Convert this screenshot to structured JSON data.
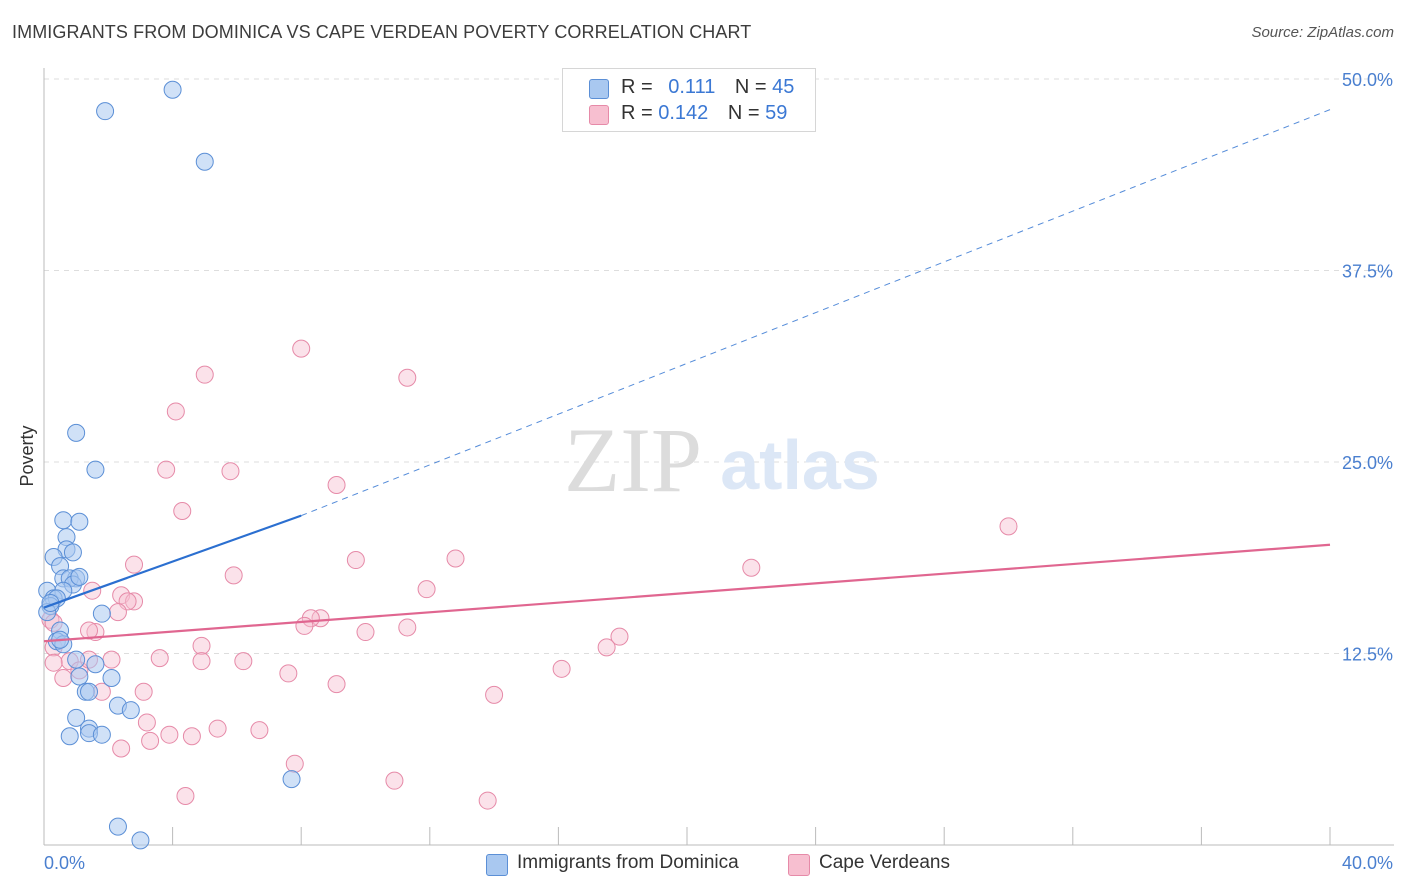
{
  "header": {
    "title": "IMMIGRANTS FROM DOMINICA VS CAPE VERDEAN POVERTY CORRELATION CHART",
    "source": "Source: ZipAtlas.com"
  },
  "watermark": {
    "zip": "ZIP",
    "atlas": "atlas"
  },
  "legend_top": [
    {
      "r_label": "R =",
      "r_value": "0.111",
      "n_label": "N =",
      "n_value": "45"
    },
    {
      "r_label": "R =",
      "r_value": "0.142",
      "n_label": "N =",
      "n_value": "59"
    }
  ],
  "legend_bottom": [
    {
      "label": "Immigrants from Dominica"
    },
    {
      "label": "Cape Verdeans"
    }
  ],
  "colors": {
    "blue_fill": "#a9c8f0",
    "blue_stroke": "#5b8fd6",
    "blue_line": "#2b6fd0",
    "pink_fill": "#f7bfd0",
    "pink_stroke": "#e68aa8",
    "pink_line": "#e06690",
    "axis_label": "#4a7fcf",
    "grid": "#dddddd"
  },
  "chart_data": {
    "type": "scatter",
    "title": "IMMIGRANTS FROM DOMINICA VS CAPE VERDEAN POVERTY CORRELATION CHART",
    "xlabel": "",
    "ylabel": "Poverty",
    "xlim": [
      0,
      40
    ],
    "ylim": [
      0,
      50
    ],
    "x_tick_labels": [
      "0.0%",
      "40.0%"
    ],
    "y_ticks": [
      12.5,
      25.0,
      37.5,
      50.0
    ],
    "y_tick_labels": [
      "12.5%",
      "25.0%",
      "37.5%",
      "50.0%"
    ],
    "grid": "horizontal dashed",
    "legend_position": "top-center and bottom",
    "series": [
      {
        "name": "Immigrants from Dominica",
        "r": 0.111,
        "n": 45,
        "trend": {
          "x0": 0,
          "y0": 15.5,
          "x1_solid": 8,
          "y1_solid": 21.5,
          "x1_dash": 40,
          "y1_dash": 48.0
        },
        "points": [
          [
            4.0,
            49.3
          ],
          [
            1.9,
            47.9
          ],
          [
            5.0,
            44.6
          ],
          [
            1.0,
            26.9
          ],
          [
            1.6,
            24.5
          ],
          [
            0.6,
            21.2
          ],
          [
            1.1,
            21.1
          ],
          [
            0.7,
            20.1
          ],
          [
            0.7,
            19.3
          ],
          [
            0.9,
            19.1
          ],
          [
            0.3,
            18.8
          ],
          [
            0.5,
            18.2
          ],
          [
            0.6,
            17.4
          ],
          [
            1.0,
            17.4
          ],
          [
            0.8,
            17.4
          ],
          [
            0.9,
            17.0
          ],
          [
            0.1,
            16.6
          ],
          [
            0.6,
            16.6
          ],
          [
            0.3,
            16.1
          ],
          [
            0.4,
            16.1
          ],
          [
            0.2,
            15.6
          ],
          [
            0.1,
            15.2
          ],
          [
            1.8,
            15.1
          ],
          [
            0.5,
            14.0
          ],
          [
            0.4,
            13.3
          ],
          [
            0.6,
            13.1
          ],
          [
            1.0,
            12.1
          ],
          [
            1.6,
            11.8
          ],
          [
            1.1,
            11.0
          ],
          [
            2.1,
            10.9
          ],
          [
            1.3,
            10.0
          ],
          [
            1.4,
            10.0
          ],
          [
            2.3,
            9.1
          ],
          [
            2.7,
            8.8
          ],
          [
            1.0,
            8.3
          ],
          [
            1.4,
            7.6
          ],
          [
            1.4,
            7.3
          ],
          [
            0.8,
            7.1
          ],
          [
            1.8,
            7.2
          ],
          [
            7.7,
            4.3
          ],
          [
            2.3,
            1.2
          ],
          [
            3.0,
            0.3
          ],
          [
            0.2,
            15.8
          ],
          [
            0.5,
            13.4
          ],
          [
            1.1,
            17.5
          ]
        ]
      },
      {
        "name": "Cape Verdeans",
        "r": 0.142,
        "n": 59,
        "trend": {
          "x0": 0,
          "y0": 13.3,
          "x1": 40,
          "y1": 19.6
        },
        "points": [
          [
            8.0,
            32.4
          ],
          [
            5.0,
            30.7
          ],
          [
            11.3,
            30.5
          ],
          [
            4.1,
            28.3
          ],
          [
            3.8,
            24.5
          ],
          [
            5.8,
            24.4
          ],
          [
            9.1,
            23.5
          ],
          [
            4.3,
            21.8
          ],
          [
            30.0,
            20.8
          ],
          [
            2.8,
            18.3
          ],
          [
            9.7,
            18.6
          ],
          [
            12.8,
            18.7
          ],
          [
            22.0,
            18.1
          ],
          [
            5.9,
            17.6
          ],
          [
            11.9,
            16.7
          ],
          [
            1.5,
            16.6
          ],
          [
            2.4,
            16.3
          ],
          [
            2.8,
            15.9
          ],
          [
            2.6,
            15.9
          ],
          [
            2.3,
            15.2
          ],
          [
            8.6,
            14.8
          ],
          [
            8.3,
            14.8
          ],
          [
            8.1,
            14.3
          ],
          [
            11.3,
            14.2
          ],
          [
            1.6,
            13.9
          ],
          [
            10.0,
            13.9
          ],
          [
            17.9,
            13.6
          ],
          [
            17.5,
            12.9
          ],
          [
            0.2,
            14.7
          ],
          [
            1.4,
            14.0
          ],
          [
            0.3,
            12.9
          ],
          [
            4.9,
            13.0
          ],
          [
            3.6,
            12.2
          ],
          [
            4.9,
            12.0
          ],
          [
            6.2,
            12.0
          ],
          [
            0.8,
            12.0
          ],
          [
            1.1,
            11.4
          ],
          [
            1.4,
            12.1
          ],
          [
            2.1,
            12.1
          ],
          [
            0.3,
            11.9
          ],
          [
            16.1,
            11.5
          ],
          [
            7.6,
            11.2
          ],
          [
            0.6,
            10.9
          ],
          [
            9.1,
            10.5
          ],
          [
            1.8,
            10.0
          ],
          [
            3.1,
            10.0
          ],
          [
            14.0,
            9.8
          ],
          [
            3.2,
            8.0
          ],
          [
            5.4,
            7.6
          ],
          [
            6.7,
            7.5
          ],
          [
            3.9,
            7.2
          ],
          [
            4.6,
            7.1
          ],
          [
            3.3,
            6.8
          ],
          [
            2.4,
            6.3
          ],
          [
            7.8,
            5.3
          ],
          [
            10.9,
            4.2
          ],
          [
            4.4,
            3.2
          ],
          [
            13.8,
            2.9
          ],
          [
            0.3,
            14.5
          ]
        ]
      }
    ]
  }
}
